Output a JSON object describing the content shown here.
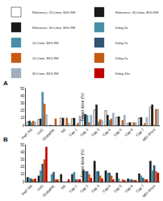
{
  "chart_data": [
    {
      "type": "bar",
      "title": "A",
      "categories": [
        "PMT NB",
        "VHC",
        "GlobalNE",
        "NB",
        "Cap 1",
        "Cap 2",
        "Cap 3",
        "Cap 4",
        "Cap 5",
        "Cap 6",
        "Cap 7",
        "MDI direct"
      ],
      "ylabel": "Target dose (%)",
      "ylim": [
        0,
        50
      ],
      "yticks": [
        0,
        10,
        20,
        30,
        40,
        50
      ],
      "grid": false,
      "legend": "top",
      "series": [
        {
          "name": "Reference, 15 L/min, 80% RH",
          "color": "#ffffff",
          "values": [
            5,
            8,
            0,
            10,
            9,
            14,
            21,
            20,
            11,
            3,
            10,
            25
          ]
        },
        {
          "name": "Reference, 30 L/min, 80% RH",
          "color": "#1a1a1a",
          "values": [
            6,
            9,
            0,
            10,
            10,
            15,
            28,
            14,
            12,
            4,
            11,
            28
          ]
        },
        {
          "name": "10 L/min, 80% RH",
          "color": "#4a8fa8",
          "values": [
            4,
            45,
            0,
            0,
            0,
            14,
            5,
            7,
            0,
            0,
            0,
            0
          ]
        },
        {
          "name": "15 L/min, 80% RH",
          "color": "#c55a11",
          "values": [
            6,
            29,
            9,
            10,
            3,
            4,
            8,
            9,
            7,
            4,
            3,
            22
          ]
        },
        {
          "name": "30 L/min, 80% RH",
          "color": "#a0afc0",
          "values": [
            5,
            15,
            0,
            3,
            13,
            14,
            7,
            17,
            14,
            4,
            11,
            22
          ]
        }
      ]
    },
    {
      "type": "bar",
      "title": "B",
      "categories": [
        "PMT NB",
        "VHC",
        "GlobalNE",
        "NB",
        "Cap 1",
        "Cap 2",
        "Cap 3",
        "Cap 4",
        "Cap 5",
        "Cap 6",
        "Cap 7",
        "MDI direct"
      ],
      "ylabel": "Target dose (%)",
      "ylim": [
        0,
        50
      ],
      "yticks": [
        0,
        10,
        20,
        30,
        40,
        50
      ],
      "grid": false,
      "legend": "top",
      "series": [
        {
          "name": "Reference, 30 L/min, 80% RH",
          "color": "#1a1a1a",
          "values": [
            6,
            8,
            0,
            10,
            10,
            15,
            28,
            15,
            12,
            4,
            11,
            28
          ]
        },
        {
          "name": "Delay 0s",
          "color": "#4a8fa8",
          "values": [
            5,
            15,
            10,
            0,
            13,
            14,
            14,
            12,
            4,
            3,
            8,
            15
          ]
        },
        {
          "name": "Delay 2s",
          "color": "#2f5575",
          "values": [
            4,
            24,
            13,
            0,
            3,
            14,
            14,
            12,
            0,
            3,
            5,
            22
          ]
        },
        {
          "name": "Delay 5s",
          "color": "#c55a11",
          "values": [
            3,
            30,
            3,
            0,
            3,
            10,
            8,
            8,
            3,
            2,
            3,
            14
          ]
        },
        {
          "name": "Delay 10s",
          "color": "#c00000",
          "values": [
            4,
            47,
            3,
            3,
            3,
            5,
            4,
            3,
            2,
            2,
            3,
            12
          ]
        }
      ]
    }
  ]
}
